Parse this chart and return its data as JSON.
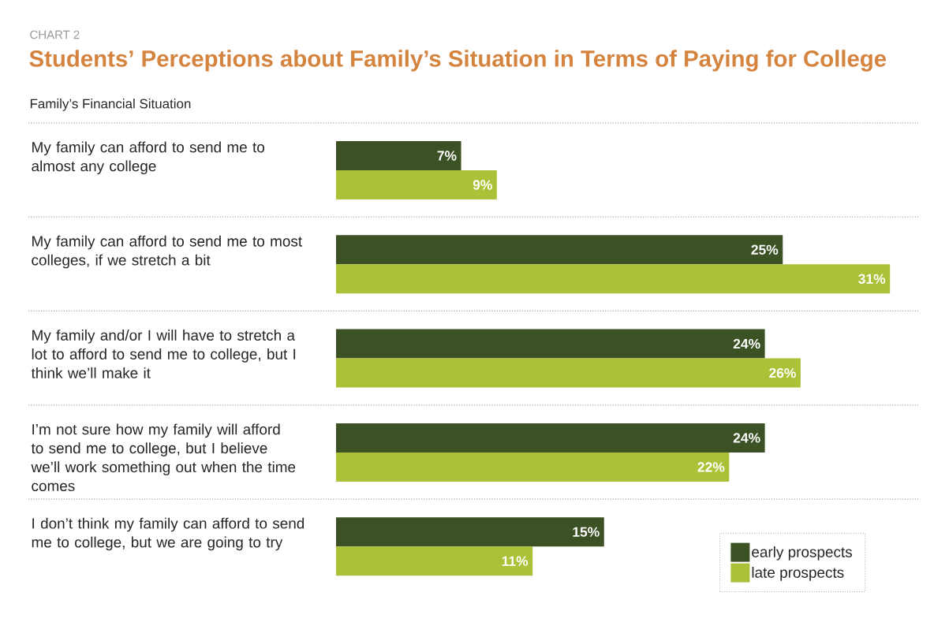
{
  "chart_data": {
    "type": "bar",
    "orientation": "horizontal",
    "title": "Students’ Perceptions about Family’s Situation in Terms of Paying for College",
    "ylabel": "Family’s Financial Situation",
    "annotations": [
      "CHART 2"
    ],
    "categories": [
      "My family can afford to send me to almost any college",
      "My family can afford to send me to most colleges, if we stretch a bit",
      "My family and/or I will have to stretch a lot to afford to send me to college, but I think we’ll make it",
      "I’m not sure how my family will afford to send me to college, but I believe we’ll work something out when the time comes",
      "I don’t think my family can afford to send me to college, but we are going to try"
    ],
    "series": [
      {
        "name": "early prospects",
        "color": "#3d5224",
        "values": [
          7,
          25,
          24,
          24,
          15
        ],
        "value_labels": [
          "7%",
          "25%",
          "24%",
          "24%",
          "15%"
        ]
      },
      {
        "name": "late prospects",
        "color": "#adc138",
        "values": [
          9,
          31,
          26,
          22,
          11
        ],
        "value_labels": [
          "9%",
          "31%",
          "26%",
          "22%",
          "11%"
        ]
      }
    ],
    "legend": "bottom right"
  }
}
